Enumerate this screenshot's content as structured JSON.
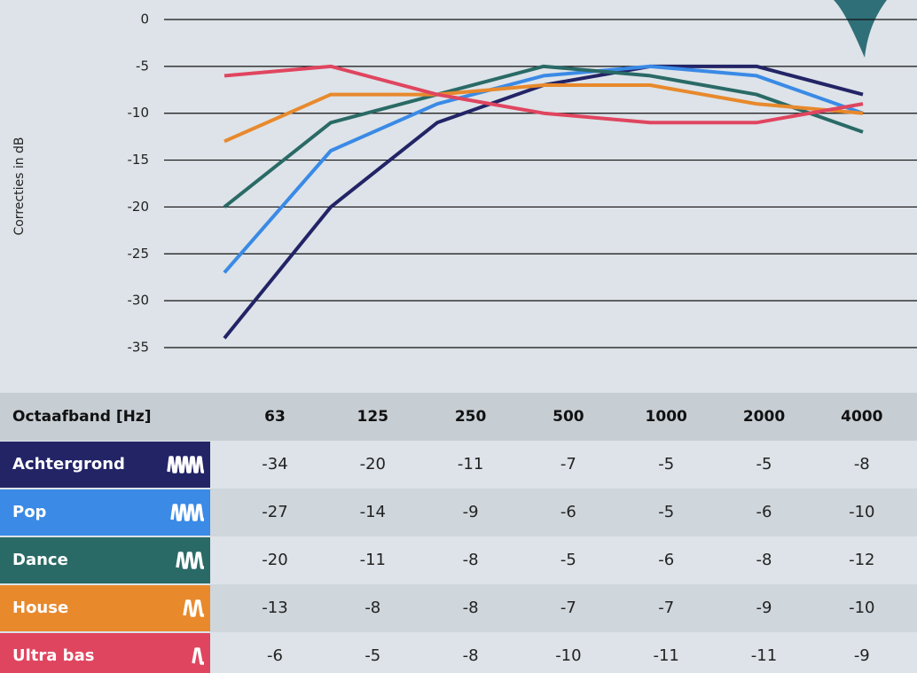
{
  "chart_data": {
    "type": "line",
    "y_label": "Correcties in dB",
    "table_header": "Octaafband [Hz]",
    "categories": [
      "63",
      "125",
      "250",
      "500",
      "1000",
      "2000",
      "4000"
    ],
    "ylim": [
      -35,
      0
    ],
    "yticks": [
      0,
      -5,
      -10,
      -15,
      -20,
      -25,
      -30,
      -35
    ],
    "grid": true,
    "series": [
      {
        "name": "Achtergrond",
        "color": "#232466",
        "values": [
          -34,
          -20,
          -11,
          -7,
          -5,
          -5,
          -8
        ]
      },
      {
        "name": "Pop",
        "color": "#3a8ae6",
        "values": [
          -27,
          -14,
          -9,
          -6,
          -5,
          -6,
          -10
        ]
      },
      {
        "name": "Dance",
        "color": "#2a6a66",
        "values": [
          -20,
          -11,
          -8,
          -5,
          -6,
          -8,
          -12
        ]
      },
      {
        "name": "House",
        "color": "#e8892c",
        "values": [
          -13,
          -8,
          -8,
          -7,
          -7,
          -9,
          -10
        ]
      },
      {
        "name": "Ultra bas",
        "color": "#e0455f",
        "values": [
          -6,
          -5,
          -8,
          -10,
          -11,
          -11,
          -9
        ]
      }
    ]
  }
}
